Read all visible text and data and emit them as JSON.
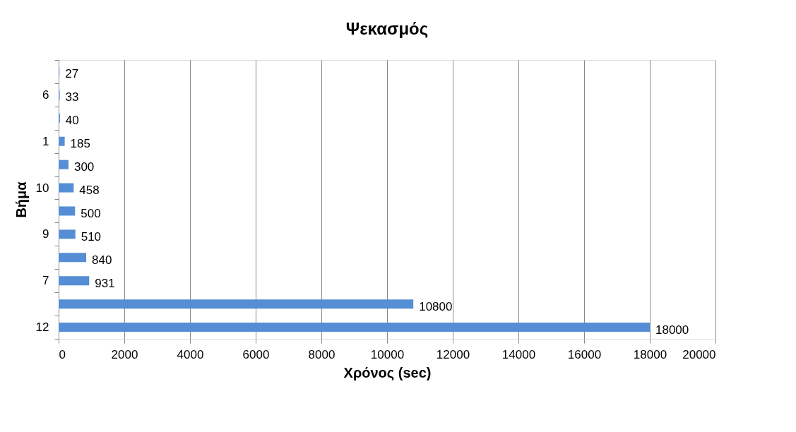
{
  "chart_data": {
    "type": "bar",
    "orientation": "horizontal",
    "title": "Ψεκασμός",
    "xlabel": "Χρόνος (sec)",
    "ylabel": "Βήμα",
    "categories": [
      null,
      "6",
      null,
      "1",
      null,
      "10",
      null,
      "9",
      null,
      "7",
      null,
      "12"
    ],
    "values": [
      27,
      33,
      40,
      185,
      300,
      458,
      500,
      510,
      840,
      931,
      10800,
      18000
    ],
    "color": "#558ed5",
    "xlim": [
      0,
      20000
    ],
    "xticks": [
      0,
      2000,
      4000,
      6000,
      8000,
      10000,
      12000,
      14000,
      16000,
      18000,
      20000
    ],
    "grid": "x",
    "data_labels": true
  }
}
